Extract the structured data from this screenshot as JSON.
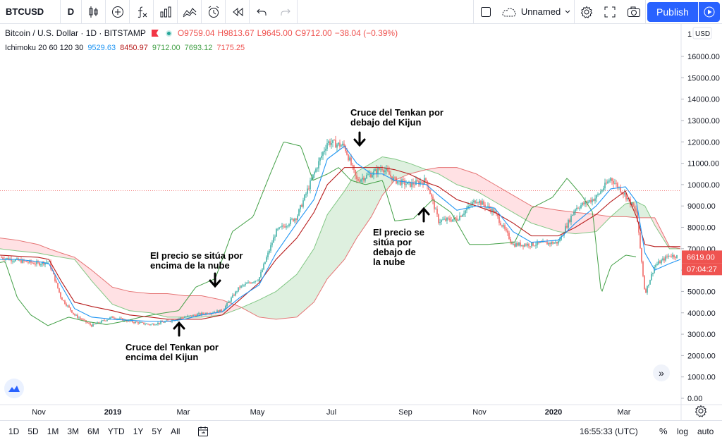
{
  "toolbar": {
    "symbol": "BTCUSD",
    "interval": "D",
    "layout_name": "Unnamed",
    "publish_label": "Publish",
    "icons": [
      "candles-icon",
      "plus-circle-icon",
      "fx-icon",
      "bar-chart-icon",
      "compare-icon",
      "alert-icon",
      "replay-icon",
      "undo-icon",
      "redo-icon",
      "square-icon",
      "cloud-icon",
      "settings-icon",
      "fullscreen-icon",
      "camera-icon",
      "play-icon"
    ]
  },
  "legend": {
    "title": "Bitcoin / U.S. Dollar · 1D · BITSTAMP",
    "open": "O9759.04",
    "high": "H9813.67",
    "low": "L9645.00",
    "close": "C9712.00",
    "change": "−38.04 (−0.39%)",
    "indicator_name": "Ichimoku 20 60 120 30",
    "indicator_values": [
      "9529.63",
      "8450.97",
      "9712.00",
      "7693.12",
      "7175.25"
    ],
    "indicator_colors": [
      "#2196f3",
      "#b71c1c",
      "#43a047",
      "#a5d6a7",
      "#ef9a9a"
    ]
  },
  "annotations": {
    "tenkan_below": "Cruce del Tenkan por\ndebajo del Kijun",
    "price_below_cloud": "El precio se\nsitúa por\ndebajo de\nla nube",
    "price_above_cloud": "El precio se sitúa por\nencima de la nube",
    "tenkan_above": "Cruce del Tenkan por\nencima del Kijun"
  },
  "price_axis": {
    "currency": "USD",
    "top_label": "1",
    "ticks": [
      "16000.00",
      "15000.00",
      "14000.00",
      "13000.00",
      "12000.00",
      "11000.00",
      "10000.00",
      "9000.00",
      "8000.00",
      "7000.00",
      "6000.00",
      "5000.00",
      "4000.00",
      "3000.00",
      "2000.00",
      "1000.00",
      "0.00"
    ],
    "last_price": "6619.00",
    "countdown": "07:04:27"
  },
  "time_axis": [
    "Nov",
    "2019",
    "Mar",
    "May",
    "Jul",
    "Sep",
    "Nov",
    "2020",
    "Mar"
  ],
  "bottom": {
    "ranges": [
      "1D",
      "5D",
      "1M",
      "3M",
      "6M",
      "YTD",
      "1Y",
      "5Y",
      "All"
    ],
    "clock": "16:55:33 (UTC)",
    "percent": "%",
    "log": "log",
    "auto": "auto"
  },
  "colors": {
    "up": "#26a69a",
    "down": "#ef5350",
    "tenkan": "#2196f3",
    "kijun": "#b71c1c",
    "lagging": "#43a047",
    "span_a": "#81c784",
    "span_b": "#e57373",
    "cloud_bull": "#c8e6c9",
    "cloud_bear": "#ffcdd2",
    "accent": "#2962ff"
  },
  "chart_data": {
    "type": "line",
    "title": "Bitcoin / U.S. Dollar · 1D · BITSTAMP",
    "xlabel": "",
    "ylabel": "",
    "ylim": [
      0,
      16500
    ],
    "x": [
      "2018-10-01",
      "2018-10-15",
      "2018-11-01",
      "2018-11-10",
      "2018-11-20",
      "2018-12-01",
      "2018-12-15",
      "2019-01-01",
      "2019-01-15",
      "2019-02-01",
      "2019-02-15",
      "2019-03-01",
      "2019-03-15",
      "2019-04-01",
      "2019-04-15",
      "2019-05-01",
      "2019-05-15",
      "2019-06-01",
      "2019-06-15",
      "2019-06-26",
      "2019-07-10",
      "2019-07-20",
      "2019-08-01",
      "2019-08-10",
      "2019-08-20",
      "2019-09-01",
      "2019-09-15",
      "2019-09-25",
      "2019-10-10",
      "2019-10-26",
      "2019-11-10",
      "2019-11-25",
      "2019-12-10",
      "2020-01-01",
      "2020-01-15",
      "2020-02-01",
      "2020-02-13",
      "2020-02-25",
      "2020-03-05",
      "2020-03-12",
      "2020-03-20",
      "2020-04-01",
      "2020-04-10"
    ],
    "series": [
      {
        "name": "Price",
        "values": [
          6600,
          6450,
          6300,
          6400,
          4700,
          3900,
          3400,
          3800,
          3600,
          3450,
          3600,
          3800,
          3950,
          4100,
          5200,
          5600,
          7800,
          8500,
          10500,
          12000,
          11800,
          10200,
          10500,
          10800,
          10200,
          10000,
          10200,
          8300,
          8400,
          9300,
          8700,
          7200,
          7200,
          7300,
          8900,
          9400,
          10300,
          9500,
          8700,
          4900,
          6200,
          6700,
          6619
        ]
      },
      {
        "name": "Tenkan",
        "values": [
          6500,
          6500,
          6400,
          6300,
          5300,
          4200,
          3800,
          3700,
          3650,
          3600,
          3600,
          3700,
          3900,
          4050,
          4700,
          5300,
          6800,
          8200,
          9300,
          11200,
          11800,
          11000,
          10500,
          10500,
          10200,
          10100,
          10000,
          9500,
          8800,
          9000,
          8900,
          7800,
          7300,
          7400,
          8200,
          9000,
          9800,
          9900,
          9200,
          6800,
          6000,
          6300,
          6500
        ]
      },
      {
        "name": "Kijun",
        "values": [
          6700,
          6650,
          6600,
          6500,
          5500,
          4500,
          4300,
          4100,
          3900,
          3800,
          3700,
          3700,
          3700,
          3900,
          4600,
          5400,
          6500,
          7500,
          8700,
          10000,
          10800,
          10800,
          10800,
          10800,
          10700,
          10500,
          10100,
          9900,
          9300,
          9000,
          8700,
          8200,
          7600,
          7600,
          8000,
          8600,
          9200,
          9700,
          8500,
          7200,
          7100,
          7100,
          7100
        ]
      },
      {
        "name": "Span A",
        "values": [
          7000,
          6900,
          6800,
          6700,
          6600,
          6500,
          5500,
          4400,
          4100,
          4000,
          3800,
          3800,
          3800,
          3900,
          4200,
          4600,
          5000,
          5800,
          7000,
          8600,
          9700,
          10600,
          11000,
          11300,
          11200,
          11000,
          10700,
          10500,
          10000,
          9700,
          9200,
          8700,
          8200,
          7800,
          7700,
          7800,
          8500,
          9100,
          9200,
          9000,
          8100,
          7000,
          7000
        ]
      },
      {
        "name": "Span B",
        "values": [
          7500,
          7400,
          7200,
          7000,
          6800,
          6600,
          6000,
          5200,
          5000,
          4900,
          4900,
          4800,
          4800,
          4600,
          4300,
          3800,
          3700,
          3800,
          4500,
          5600,
          6500,
          7500,
          8500,
          9500,
          10200,
          10500,
          10700,
          10800,
          10800,
          10500,
          10000,
          9500,
          9000,
          8800,
          8700,
          8600,
          8500,
          8500,
          8450,
          8450,
          8450,
          7100,
          7000
        ]
      }
    ]
  }
}
